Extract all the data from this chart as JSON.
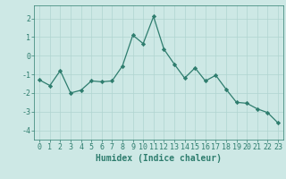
{
  "x": [
    0,
    1,
    2,
    3,
    4,
    5,
    6,
    7,
    8,
    9,
    10,
    11,
    12,
    13,
    14,
    15,
    16,
    17,
    18,
    19,
    20,
    21,
    22,
    23
  ],
  "y": [
    -1.3,
    -1.6,
    -0.8,
    -2.0,
    -1.85,
    -1.35,
    -1.4,
    -1.35,
    -0.55,
    1.1,
    0.65,
    2.1,
    0.35,
    -0.45,
    -1.2,
    -0.65,
    -1.35,
    -1.05,
    -1.8,
    -2.5,
    -2.55,
    -2.85,
    -3.05,
    -3.6
  ],
  "line_color": "#2e7d6e",
  "marker": "D",
  "marker_size": 2.2,
  "bg_color": "#cde8e5",
  "grid_color": "#b0d4d0",
  "xlabel": "Humidex (Indice chaleur)",
  "ylim": [
    -4.5,
    2.7
  ],
  "xlim": [
    -0.5,
    23.5
  ],
  "yticks": [
    -4,
    -3,
    -2,
    -1,
    0,
    1,
    2
  ],
  "xticks": [
    0,
    1,
    2,
    3,
    4,
    5,
    6,
    7,
    8,
    9,
    10,
    11,
    12,
    13,
    14,
    15,
    16,
    17,
    18,
    19,
    20,
    21,
    22,
    23
  ],
  "tick_color": "#2e7d6e",
  "label_fontsize": 7.0,
  "tick_fontsize": 6.0
}
